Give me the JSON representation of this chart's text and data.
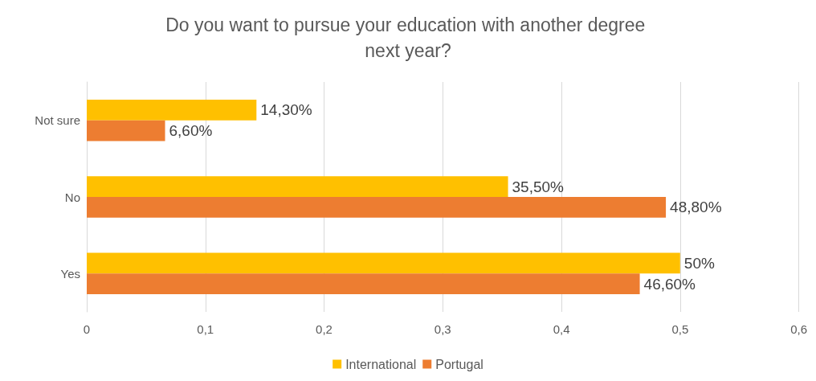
{
  "chart_data": {
    "type": "bar",
    "orientation": "horizontal",
    "title": "Do you want to pursue your education with another degree next year?",
    "categories": [
      "Not sure",
      "No",
      "Yes"
    ],
    "series": [
      {
        "name": "International",
        "color": "#ffc000",
        "values": [
          0.143,
          0.355,
          0.5
        ],
        "value_labels": [
          "14,30%",
          "35,50%",
          "50%"
        ]
      },
      {
        "name": "Portugal",
        "color": "#ed7d31",
        "values": [
          0.066,
          0.488,
          0.466
        ],
        "value_labels": [
          "6,60%",
          "48,80%",
          "46,60%"
        ]
      }
    ],
    "xlim": [
      0,
      0.6
    ],
    "xticks": [
      {
        "value": 0,
        "label": "0"
      },
      {
        "value": 0.1,
        "label": "0,1"
      },
      {
        "value": 0.2,
        "label": "0,2"
      },
      {
        "value": 0.3,
        "label": "0,3"
      },
      {
        "value": 0.4,
        "label": "0,4"
      },
      {
        "value": 0.5,
        "label": "0,5"
      },
      {
        "value": 0.6,
        "label": "0,6"
      }
    ],
    "grid": "x",
    "legend": "bottom"
  }
}
